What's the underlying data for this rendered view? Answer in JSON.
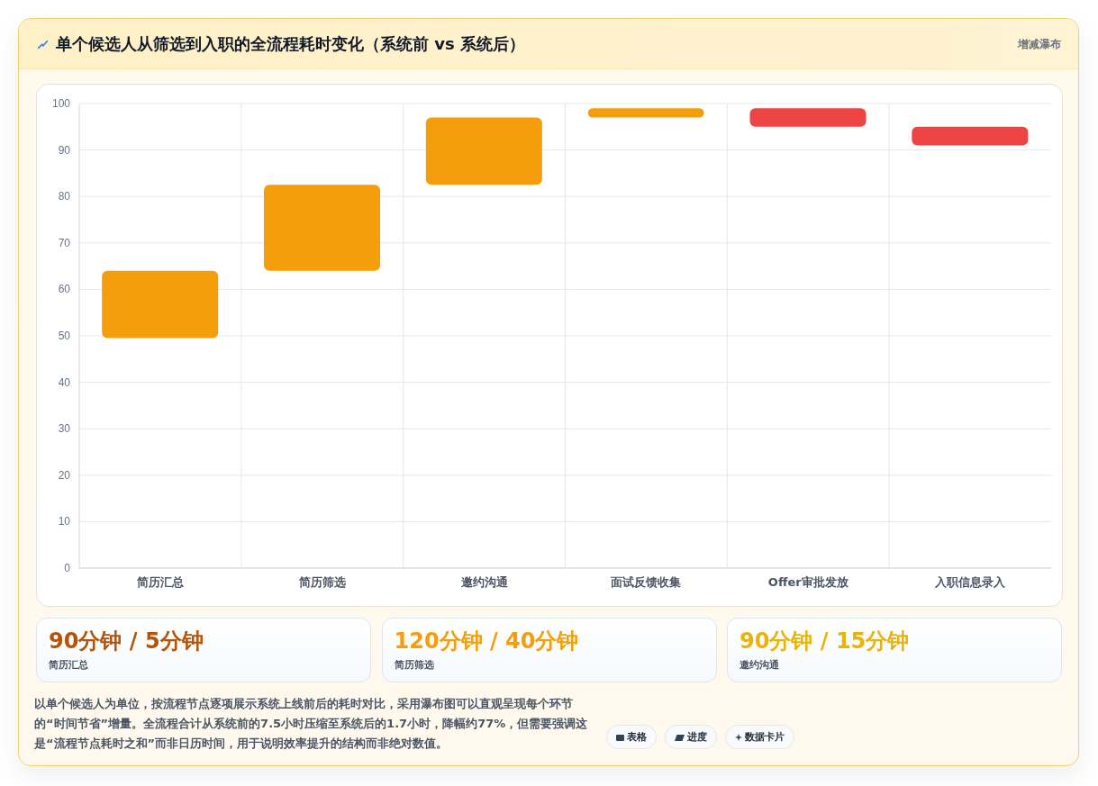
{
  "chart_data": {
    "type": "bar",
    "title": "单个候选人从筛选到入职的全流程耗时变化（系统前 vs 系统后）",
    "subtitle": "增减瀑布",
    "categories": [
      "简历汇总",
      "简历筛选",
      "邀约沟通",
      "面试反馈收集",
      "Offer审批发放",
      "入职信息录入"
    ],
    "base": [
      49.5,
      64,
      82.5,
      97,
      99,
      95
    ],
    "values": [
      14.5,
      18.5,
      14.5,
      2,
      -4,
      -4
    ],
    "colors": [
      "#f59e0b",
      "#f59e0b",
      "#f59e0b",
      "#f59e0b",
      "#ef4444",
      "#ef4444"
    ],
    "ylim": [
      0,
      100
    ],
    "yticks": [
      0,
      10,
      20,
      30,
      40,
      50,
      60,
      70,
      80,
      90,
      100
    ],
    "grid": true,
    "annotations": [
      "90分钟 / 5分钟",
      "简历汇总",
      "120分钟 / 40分钟",
      "简历筛选",
      "90分钟 / 15分钟",
      "邀约沟通",
      "以单个候选人为单位，按流程节点逐项展示系统上线前后的耗时对比，采用瀑布图可以直观呈现每个环节的“时间节省”增量。全流程合计从系统前的7.5小时压缩至系统后的1.7小时，降幅约77%，但需要强调这是“流程节点耗时之和”而非日历时间，用于说明效率提升的结构而非绝对数值。",
      "表格",
      "进度",
      "数据卡片"
    ]
  }
}
